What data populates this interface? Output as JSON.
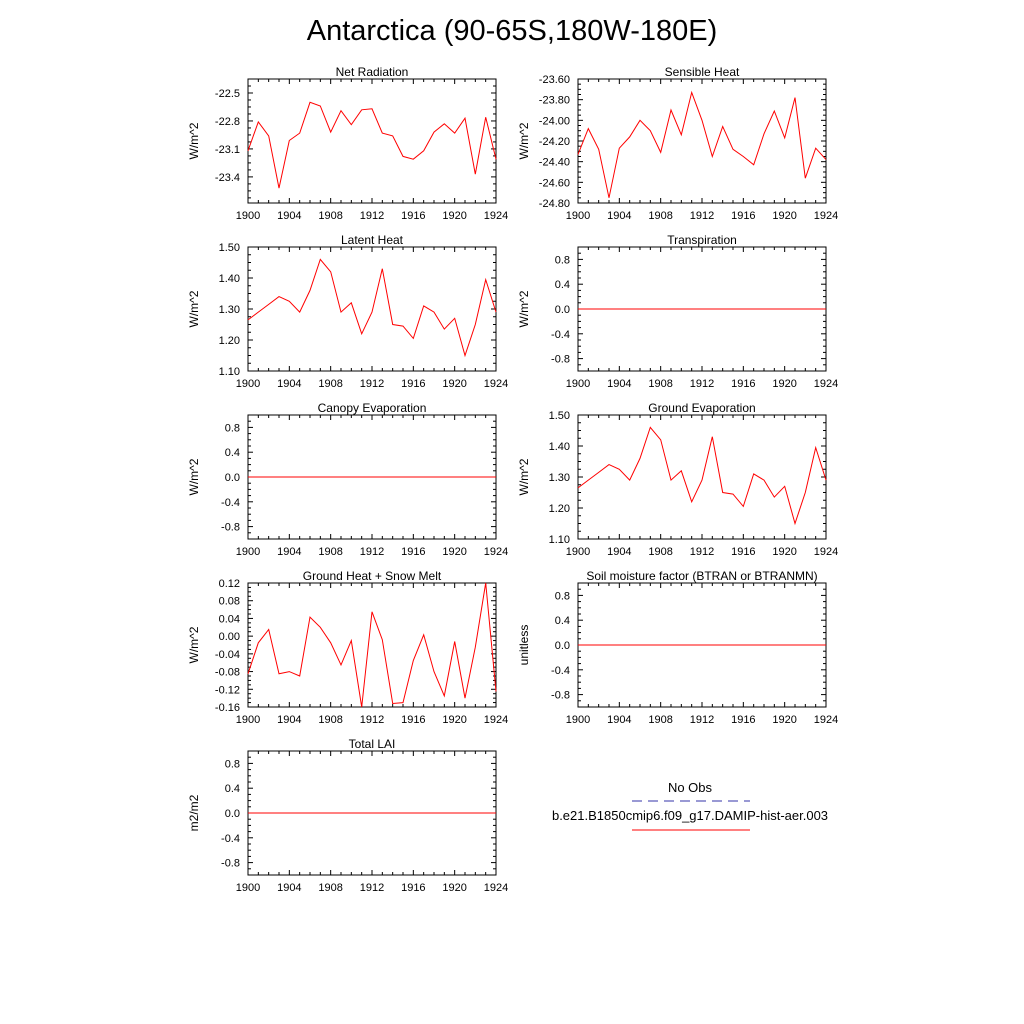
{
  "title": "Antarctica (90-65S,180W-180E)",
  "colors": {
    "model_line": "#ff0000",
    "obs_line": "#3333aa",
    "axis": "#000000",
    "background": "#ffffff"
  },
  "legend": {
    "obs_label": "No Obs",
    "model_label": "b.e21.B1850cmip6.f09_g17.DAMIP-hist-aer.003",
    "obs_style": "dashed",
    "model_style": "solid"
  },
  "chart_data": [
    {
      "type": "line",
      "title": "Net Radiation",
      "ylabel": "W/m^2",
      "xlim": [
        1900,
        1924
      ],
      "ylim": [
        -23.68,
        -22.35
      ],
      "xticks": [
        1900,
        1904,
        1908,
        1912,
        1916,
        1920,
        1924
      ],
      "yticks": [
        -23.4,
        -23.1,
        -22.8,
        -22.5
      ],
      "ytick_labels": [
        "-23.4",
        "-23.1",
        "-22.8",
        "-22.5"
      ],
      "series": [
        {
          "x": [
            1900,
            1901,
            1902,
            1903,
            1904,
            1905,
            1906,
            1907,
            1908,
            1909,
            1910,
            1911,
            1912,
            1913,
            1914,
            1915,
            1916,
            1917,
            1918,
            1919,
            1920,
            1921,
            1922,
            1923,
            1924
          ],
          "values": [
            -23.12,
            -22.81,
            -22.96,
            -23.52,
            -23.01,
            -22.93,
            -22.6,
            -22.64,
            -22.92,
            -22.69,
            -22.84,
            -22.68,
            -22.67,
            -22.93,
            -22.96,
            -23.18,
            -23.21,
            -23.12,
            -22.92,
            -22.83,
            -22.93,
            -22.77,
            -23.37,
            -22.76,
            -23.21
          ]
        }
      ]
    },
    {
      "type": "line",
      "title": "Sensible Heat",
      "ylabel": "W/m^2",
      "xlim": [
        1900,
        1924
      ],
      "ylim": [
        -24.8,
        -23.6
      ],
      "xticks": [
        1900,
        1904,
        1908,
        1912,
        1916,
        1920,
        1924
      ],
      "yticks": [
        -24.8,
        -24.6,
        -24.4,
        -24.2,
        -24.0,
        -23.8,
        -23.6
      ],
      "ytick_labels": [
        "-24.80",
        "-24.60",
        "-24.40",
        "-24.20",
        "-24.00",
        "-23.80",
        "-23.60"
      ],
      "series": [
        {
          "x": [
            1900,
            1901,
            1902,
            1903,
            1904,
            1905,
            1906,
            1907,
            1908,
            1909,
            1910,
            1911,
            1912,
            1913,
            1914,
            1915,
            1916,
            1917,
            1918,
            1919,
            1920,
            1921,
            1922,
            1923,
            1924
          ],
          "values": [
            -24.33,
            -24.08,
            -24.28,
            -24.75,
            -24.27,
            -24.16,
            -24.0,
            -24.1,
            -24.31,
            -23.9,
            -24.14,
            -23.73,
            -24.0,
            -24.35,
            -24.06,
            -24.28,
            -24.35,
            -24.43,
            -24.13,
            -23.91,
            -24.17,
            -23.78,
            -24.56,
            -24.27,
            -24.38
          ]
        }
      ]
    },
    {
      "type": "line",
      "title": "Latent Heat",
      "ylabel": "W/m^2",
      "xlim": [
        1900,
        1924
      ],
      "ylim": [
        1.1,
        1.5
      ],
      "xticks": [
        1900,
        1904,
        1908,
        1912,
        1916,
        1920,
        1924
      ],
      "yticks": [
        1.1,
        1.2,
        1.3,
        1.4,
        1.5
      ],
      "ytick_labels": [
        "1.10",
        "1.20",
        "1.30",
        "1.40",
        "1.50"
      ],
      "series": [
        {
          "x": [
            1900,
            1901,
            1902,
            1903,
            1904,
            1905,
            1906,
            1907,
            1908,
            1909,
            1910,
            1911,
            1912,
            1913,
            1914,
            1915,
            1916,
            1917,
            1918,
            1919,
            1920,
            1921,
            1922,
            1923,
            1924
          ],
          "values": [
            1.265,
            1.29,
            1.315,
            1.34,
            1.325,
            1.29,
            1.36,
            1.46,
            1.42,
            1.29,
            1.32,
            1.22,
            1.29,
            1.43,
            1.25,
            1.245,
            1.205,
            1.31,
            1.29,
            1.235,
            1.27,
            1.15,
            1.25,
            1.395,
            1.29
          ]
        }
      ]
    },
    {
      "type": "line",
      "title": "Transpiration",
      "ylabel": "W/m^2",
      "xlim": [
        1900,
        1924
      ],
      "ylim": [
        -1.0,
        1.0
      ],
      "xticks": [
        1900,
        1904,
        1908,
        1912,
        1916,
        1920,
        1924
      ],
      "yticks": [
        -0.8,
        -0.4,
        0.0,
        0.4,
        0.8
      ],
      "ytick_labels": [
        "-0.8",
        "-0.4",
        "0.0",
        "0.4",
        "0.8"
      ],
      "series": [
        {
          "x": [
            1900,
            1924
          ],
          "values": [
            0.0,
            0.0
          ]
        }
      ]
    },
    {
      "type": "line",
      "title": "Canopy Evaporation",
      "ylabel": "W/m^2",
      "xlim": [
        1900,
        1924
      ],
      "ylim": [
        -1.0,
        1.0
      ],
      "xticks": [
        1900,
        1904,
        1908,
        1912,
        1916,
        1920,
        1924
      ],
      "yticks": [
        -0.8,
        -0.4,
        0.0,
        0.4,
        0.8
      ],
      "ytick_labels": [
        "-0.8",
        "-0.4",
        "0.0",
        "0.4",
        "0.8"
      ],
      "series": [
        {
          "x": [
            1900,
            1924
          ],
          "values": [
            0.0,
            0.0
          ]
        }
      ]
    },
    {
      "type": "line",
      "title": "Ground Evaporation",
      "ylabel": "W/m^2",
      "xlim": [
        1900,
        1924
      ],
      "ylim": [
        1.1,
        1.5
      ],
      "xticks": [
        1900,
        1904,
        1908,
        1912,
        1916,
        1920,
        1924
      ],
      "yticks": [
        1.1,
        1.2,
        1.3,
        1.4,
        1.5
      ],
      "ytick_labels": [
        "1.10",
        "1.20",
        "1.30",
        "1.40",
        "1.50"
      ],
      "series": [
        {
          "x": [
            1900,
            1901,
            1902,
            1903,
            1904,
            1905,
            1906,
            1907,
            1908,
            1909,
            1910,
            1911,
            1912,
            1913,
            1914,
            1915,
            1916,
            1917,
            1918,
            1919,
            1920,
            1921,
            1922,
            1923,
            1924
          ],
          "values": [
            1.265,
            1.29,
            1.315,
            1.34,
            1.325,
            1.29,
            1.36,
            1.46,
            1.42,
            1.29,
            1.32,
            1.22,
            1.29,
            1.43,
            1.25,
            1.245,
            1.205,
            1.31,
            1.29,
            1.235,
            1.27,
            1.15,
            1.25,
            1.395,
            1.29
          ]
        }
      ]
    },
    {
      "type": "line",
      "title": "Ground Heat + Snow Melt",
      "ylabel": "W/m^2",
      "xlim": [
        1900,
        1924
      ],
      "ylim": [
        -0.16,
        0.12
      ],
      "xticks": [
        1900,
        1904,
        1908,
        1912,
        1916,
        1920,
        1924
      ],
      "yticks": [
        -0.16,
        -0.12,
        -0.08,
        -0.04,
        0.0,
        0.04,
        0.08,
        0.12
      ],
      "ytick_labels": [
        "-0.16",
        "-0.12",
        "-0.08",
        "-0.04",
        "0.00",
        "0.04",
        "0.08",
        "0.12"
      ],
      "series": [
        {
          "x": [
            1900,
            1901,
            1902,
            1903,
            1904,
            1905,
            1906,
            1907,
            1908,
            1909,
            1910,
            1911,
            1912,
            1913,
            1914,
            1915,
            1916,
            1917,
            1918,
            1919,
            1920,
            1921,
            1922,
            1923,
            1924
          ],
          "values": [
            -0.085,
            -0.015,
            0.015,
            -0.085,
            -0.08,
            -0.09,
            0.043,
            0.02,
            -0.015,
            -0.065,
            -0.01,
            -0.16,
            0.055,
            -0.008,
            -0.152,
            -0.15,
            -0.055,
            0.003,
            -0.08,
            -0.135,
            -0.012,
            -0.14,
            -0.025,
            0.12,
            -0.125
          ]
        }
      ]
    },
    {
      "type": "line",
      "title": "Soil moisture factor (BTRAN or BTRANMN)",
      "ylabel": "unitless",
      "xlim": [
        1900,
        1924
      ],
      "ylim": [
        -1.0,
        1.0
      ],
      "xticks": [
        1900,
        1904,
        1908,
        1912,
        1916,
        1920,
        1924
      ],
      "yticks": [
        -0.8,
        -0.4,
        0.0,
        0.4,
        0.8
      ],
      "ytick_labels": [
        "-0.8",
        "-0.4",
        "0.0",
        "0.4",
        "0.8"
      ],
      "series": [
        {
          "x": [
            1900,
            1924
          ],
          "values": [
            0.0,
            0.0
          ]
        }
      ]
    },
    {
      "type": "line",
      "title": "Total LAI",
      "ylabel": "m2/m2",
      "xlim": [
        1900,
        1924
      ],
      "ylim": [
        -1.0,
        1.0
      ],
      "xticks": [
        1900,
        1904,
        1908,
        1912,
        1916,
        1920,
        1924
      ],
      "yticks": [
        -0.8,
        -0.4,
        0.0,
        0.4,
        0.8
      ],
      "ytick_labels": [
        "-0.8",
        "-0.4",
        "0.0",
        "0.4",
        "0.8"
      ],
      "series": [
        {
          "x": [
            1900,
            1924
          ],
          "values": [
            0.0,
            0.0
          ]
        }
      ]
    }
  ]
}
